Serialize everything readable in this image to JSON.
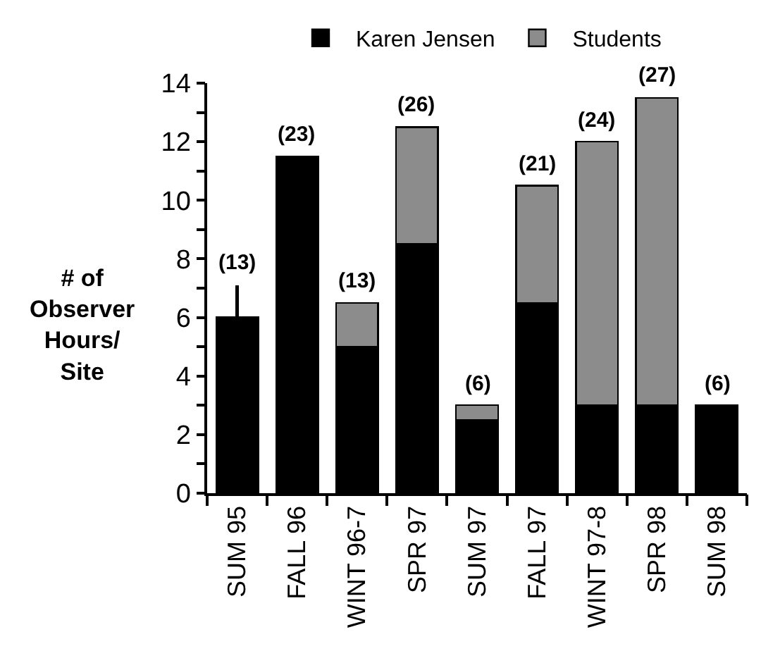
{
  "chart_data": {
    "type": "bar",
    "stacked": true,
    "categories": [
      "SUM 95",
      "FALL 96",
      "WINT 96-7",
      "SPR 97",
      "SUM 97",
      "FALL 97",
      "WINT 97-8",
      "SPR 98",
      "SUM 98"
    ],
    "series": [
      {
        "name": "Karen Jensen",
        "color": "#000000",
        "values": [
          6,
          11.5,
          5,
          8.5,
          2.5,
          6.5,
          3,
          3,
          3
        ],
        "errors": [
          [
            6,
            7.1
          ],
          null,
          null,
          null,
          null,
          null,
          null,
          null,
          null
        ]
      },
      {
        "name": "Students",
        "color": "#8c8c8c",
        "values": [
          null,
          null,
          1.5,
          4,
          0.5,
          4,
          9,
          10.5,
          null
        ]
      }
    ],
    "ylabel": "# of\nObserver\nHours/\nSite",
    "ylim": [
      0,
      14
    ],
    "yticks": [
      0,
      {
        "value": 1,
        "label": null
      },
      2,
      {
        "value": 3,
        "label": null
      },
      4,
      {
        "value": 5,
        "label": null
      },
      6,
      {
        "value": 7,
        "label": null
      },
      8,
      {
        "value": 9,
        "label": null
      },
      10,
      {
        "value": 11,
        "label": null
      },
      12,
      {
        "value": 13,
        "label": null
      },
      14
    ],
    "annotations": [
      {
        "text": "(13)",
        "x": "SUM 95",
        "y": 7.1
      },
      {
        "text": "(23)",
        "x": "FALL 96",
        "y": 11.5
      },
      {
        "text": "(13)",
        "x": "WINT 96-7",
        "y": 6.5
      },
      {
        "text": "(26)",
        "x": "SPR 97",
        "y": 12.5
      },
      {
        "text": "(6)",
        "x": "SUM 97",
        "y": 3
      },
      {
        "text": "(21)",
        "x": "FALL 97",
        "y": 10.5
      },
      {
        "text": "(24)",
        "x": "WINT 97-8",
        "y": 12
      },
      {
        "text": "(27)",
        "x": "SPR 98",
        "y": 13.5
      },
      {
        "text": "(6)",
        "x": "SUM 98",
        "y": 3
      }
    ],
    "legend": "top"
  }
}
